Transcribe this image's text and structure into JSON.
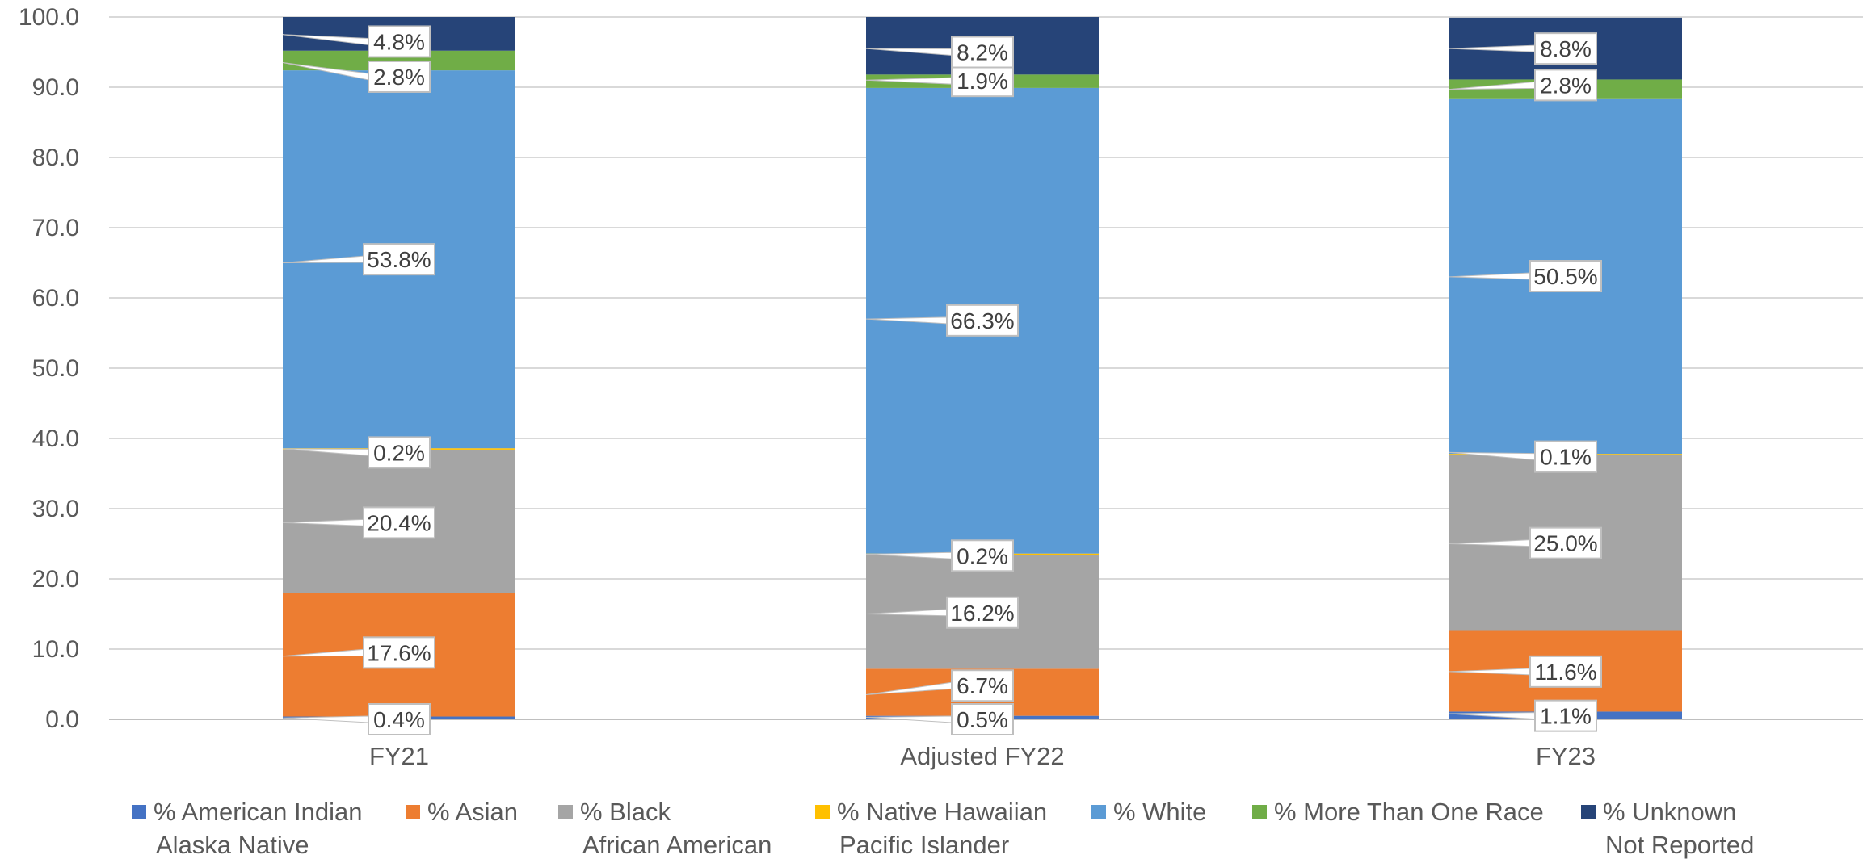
{
  "chart_data": {
    "type": "bar",
    "stacked": true,
    "categories": [
      "FY21",
      "Adjusted FY22",
      "FY23"
    ],
    "ylim": [
      0,
      100
    ],
    "yticks": [
      "0.0",
      "10.0",
      "20.0",
      "30.0",
      "40.0",
      "50.0",
      "60.0",
      "70.0",
      "80.0",
      "90.0",
      "100.0"
    ],
    "grid": true,
    "legend_position": "bottom",
    "series": [
      {
        "name": "% American Indian Alaska Native",
        "legend_lines": [
          "% American Indian",
          "Alaska Native"
        ],
        "color": "#4472C4",
        "values": [
          0.4,
          0.5,
          1.1
        ],
        "labels": [
          "0.4%",
          "0.5%",
          "1.1%"
        ]
      },
      {
        "name": "% Asian",
        "legend_lines": [
          "% Asian"
        ],
        "color": "#ED7D31",
        "values": [
          17.6,
          6.7,
          11.6
        ],
        "labels": [
          "17.6%",
          "6.7%",
          "11.6%"
        ]
      },
      {
        "name": "% Black African American",
        "legend_lines": [
          "% Black",
          "African American"
        ],
        "color": "#A5A5A5",
        "values": [
          20.4,
          16.2,
          25.0
        ],
        "labels": [
          "20.4%",
          "16.2%",
          "25.0%"
        ]
      },
      {
        "name": "% Native Hawaiian Pacific Islander",
        "legend_lines": [
          "% Native Hawaiian",
          "Pacific Islander"
        ],
        "color": "#FFC000",
        "values": [
          0.2,
          0.2,
          0.1
        ],
        "labels": [
          "0.2%",
          "0.2%",
          "0.1%"
        ]
      },
      {
        "name": "% White",
        "legend_lines": [
          "% White"
        ],
        "color": "#5B9BD5",
        "values": [
          53.8,
          66.3,
          50.5
        ],
        "labels": [
          "53.8%",
          "66.3%",
          "50.5%"
        ]
      },
      {
        "name": "% More Than One Race",
        "legend_lines": [
          "% More Than One Race"
        ],
        "color": "#70AD47",
        "values": [
          2.8,
          1.9,
          2.8
        ],
        "labels": [
          "2.8%",
          "1.9%",
          "2.8%"
        ]
      },
      {
        "name": "% Unknown Not Reported",
        "legend_lines": [
          "% Unknown",
          "Not Reported"
        ],
        "color": "#264478",
        "values": [
          4.8,
          8.2,
          8.8
        ],
        "labels": [
          "4.8%",
          "8.2%",
          "8.8%"
        ]
      }
    ]
  }
}
